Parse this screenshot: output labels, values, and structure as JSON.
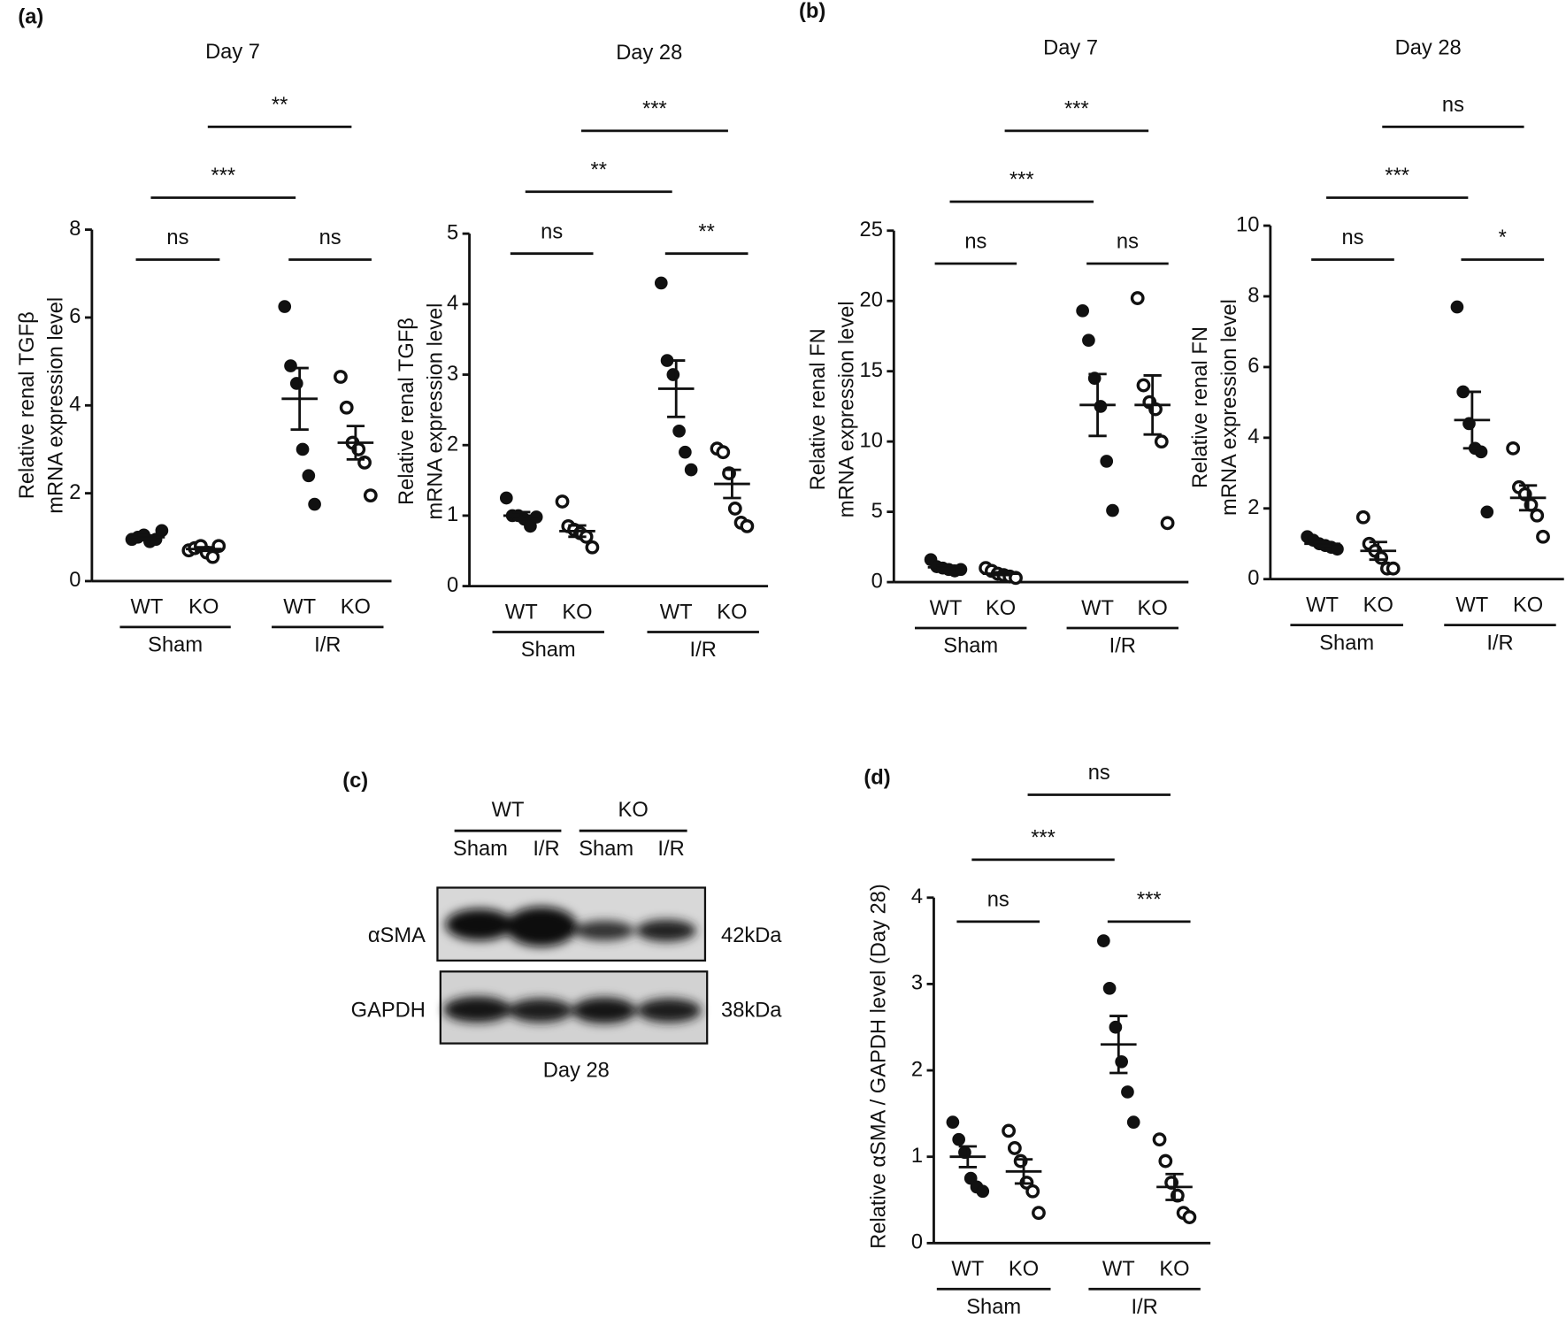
{
  "chart_data": [
    {
      "type": "dotplot",
      "panel": "(a)",
      "title": "Day 7",
      "ylabel": [
        "Relative renal TGFβ",
        "mRNA expression level"
      ],
      "categories": [
        "WT",
        "KO",
        "WT",
        "KO"
      ],
      "groups": [
        "Sham",
        "I/R"
      ],
      "markers": [
        "filled",
        "open",
        "filled",
        "open"
      ],
      "points": [
        [
          0.95,
          1.0,
          1.05,
          0.9,
          0.95,
          1.15
        ],
        [
          0.7,
          0.75,
          0.8,
          0.65,
          0.55,
          0.8
        ],
        [
          6.25,
          4.9,
          4.5,
          3.0,
          2.4,
          1.75
        ],
        [
          4.65,
          3.95,
          3.15,
          3.0,
          2.7,
          1.95
        ]
      ],
      "means": [
        1.0,
        0.73,
        4.15,
        3.15
      ],
      "sems": [
        0.04,
        0.04,
        0.7,
        0.38
      ],
      "ylim": [
        0,
        8
      ],
      "yticks": [
        0,
        2,
        4,
        6,
        8
      ],
      "comparisons": [
        {
          "from": 0,
          "to": 1,
          "label": "ns"
        },
        {
          "from": 2,
          "to": 3,
          "label": "ns"
        },
        {
          "from": 0,
          "to": 2,
          "label": "***"
        },
        {
          "from": 1,
          "to": 3,
          "label": "**"
        }
      ]
    },
    {
      "type": "dotplot",
      "title": "Day 28",
      "ylabel": [
        "Relative renal TGFβ",
        "mRNA expression level"
      ],
      "categories": [
        "WT",
        "KO",
        "WT",
        "KO"
      ],
      "groups": [
        "Sham",
        "I/R"
      ],
      "markers": [
        "filled",
        "open",
        "filled",
        "open"
      ],
      "points": [
        [
          1.25,
          1.0,
          1.0,
          0.95,
          0.85,
          0.98
        ],
        [
          1.2,
          0.85,
          0.8,
          0.75,
          0.7,
          0.55
        ],
        [
          4.3,
          3.2,
          3.0,
          2.2,
          1.9,
          1.65
        ],
        [
          1.95,
          1.9,
          1.6,
          1.1,
          0.9,
          0.85
        ]
      ],
      "means": [
        1.0,
        0.78,
        2.8,
        1.45
      ],
      "sems": [
        0.05,
        0.08,
        0.4,
        0.2
      ],
      "ylim": [
        0,
        5
      ],
      "yticks": [
        0,
        1,
        2,
        3,
        4,
        5
      ],
      "comparisons": [
        {
          "from": 0,
          "to": 1,
          "label": "ns"
        },
        {
          "from": 2,
          "to": 3,
          "label": "**"
        },
        {
          "from": 0,
          "to": 2,
          "label": "**"
        },
        {
          "from": 1,
          "to": 3,
          "label": "***"
        }
      ]
    },
    {
      "type": "dotplot",
      "panel": "(b)",
      "title": "Day 7",
      "ylabel": [
        "Relative renal FN",
        "mRNA expression level"
      ],
      "categories": [
        "WT",
        "KO",
        "WT",
        "KO"
      ],
      "groups": [
        "Sham",
        "I/R"
      ],
      "markers": [
        "filled",
        "open",
        "filled",
        "open"
      ],
      "points": [
        [
          1.6,
          1.1,
          1.0,
          0.9,
          0.8,
          0.9
        ],
        [
          1.0,
          0.8,
          0.6,
          0.5,
          0.4,
          0.3
        ],
        [
          19.3,
          17.2,
          14.5,
          12.5,
          8.6,
          5.1
        ],
        [
          20.2,
          14.0,
          12.8,
          12.3,
          10.0,
          4.2
        ]
      ],
      "means": [
        1.05,
        0.6,
        12.6,
        12.6
      ],
      "sems": [
        0.12,
        0.1,
        2.2,
        2.1
      ],
      "ylim": [
        0,
        25
      ],
      "yticks": [
        0,
        5,
        10,
        15,
        20,
        25
      ],
      "comparisons": [
        {
          "from": 0,
          "to": 1,
          "label": "ns"
        },
        {
          "from": 2,
          "to": 3,
          "label": "ns"
        },
        {
          "from": 0,
          "to": 2,
          "label": "***"
        },
        {
          "from": 1,
          "to": 3,
          "label": "***"
        }
      ]
    },
    {
      "type": "dotplot",
      "title": "Day 28",
      "ylabel": [
        "Relative renal FN",
        "mRNA expression level"
      ],
      "categories": [
        "WT",
        "KO",
        "WT",
        "KO"
      ],
      "groups": [
        "Sham",
        "I/R"
      ],
      "markers": [
        "filled",
        "open",
        "filled",
        "open"
      ],
      "points": [
        [
          1.2,
          1.1,
          1.0,
          0.95,
          0.9,
          0.85
        ],
        [
          1.75,
          1.0,
          0.8,
          0.6,
          0.3,
          0.3
        ],
        [
          7.7,
          5.3,
          4.4,
          3.7,
          3.6,
          1.9
        ],
        [
          3.7,
          2.6,
          2.4,
          2.1,
          1.8,
          1.2
        ]
      ],
      "means": [
        1.0,
        0.8,
        4.5,
        2.3
      ],
      "sems": [
        0.05,
        0.25,
        0.8,
        0.35
      ],
      "ylim": [
        0,
        10
      ],
      "yticks": [
        0,
        2,
        4,
        6,
        8,
        10
      ],
      "comparisons": [
        {
          "from": 0,
          "to": 1,
          "label": "ns"
        },
        {
          "from": 2,
          "to": 3,
          "label": "*"
        },
        {
          "from": 0,
          "to": 2,
          "label": "***"
        },
        {
          "from": 1,
          "to": 3,
          "label": "ns"
        }
      ]
    },
    {
      "type": "dotplot",
      "panel": "(d)",
      "ylabel": [
        "Relative αSMA / GAPDH level  (Day 28)"
      ],
      "categories": [
        "WT",
        "KO",
        "WT",
        "KO"
      ],
      "groups": [
        "Sham",
        "I/R"
      ],
      "markers": [
        "filled",
        "open",
        "filled",
        "open"
      ],
      "points": [
        [
          1.4,
          1.2,
          1.05,
          0.75,
          0.65,
          0.6
        ],
        [
          1.3,
          1.1,
          0.95,
          0.7,
          0.6,
          0.35
        ],
        [
          3.5,
          2.95,
          2.5,
          2.1,
          1.75,
          1.4
        ],
        [
          1.2,
          0.95,
          0.7,
          0.55,
          0.35,
          0.3
        ]
      ],
      "means": [
        1.0,
        0.83,
        2.3,
        0.65
      ],
      "sems": [
        0.12,
        0.14,
        0.33,
        0.15
      ],
      "ylim": [
        0,
        4
      ],
      "yticks": [
        0,
        1,
        2,
        3,
        4
      ],
      "comparisons": [
        {
          "from": 0,
          "to": 1,
          "label": "ns"
        },
        {
          "from": 2,
          "to": 3,
          "label": "***"
        },
        {
          "from": 0,
          "to": 2,
          "label": "***"
        },
        {
          "from": 1,
          "to": 3,
          "label": "ns"
        }
      ]
    }
  ],
  "blot": {
    "panel": "(c)",
    "groups": [
      {
        "label": "WT",
        "lanes": [
          "Sham",
          "I/R"
        ]
      },
      {
        "label": "KO",
        "lanes": [
          "Sham",
          "I/R"
        ]
      }
    ],
    "rows": [
      {
        "label": "αSMA",
        "size": "42kDa"
      },
      {
        "label": "GAPDH",
        "size": "38kDa"
      }
    ],
    "caption": "Day 28"
  }
}
